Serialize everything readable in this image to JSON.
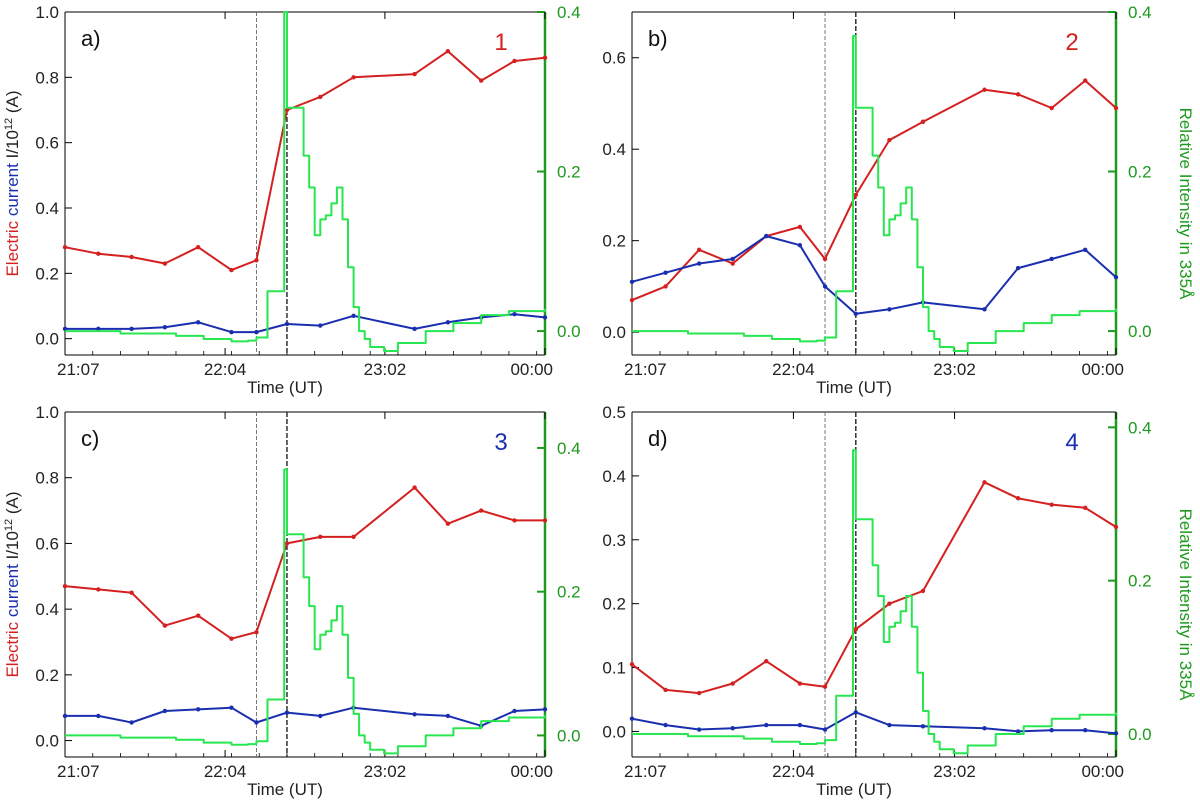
{
  "shared": {
    "xlabel": "Time (UT)",
    "xticks": [
      "21:07",
      "22:04",
      "23:02",
      "00:00"
    ],
    "ylabel_left_parts": [
      "Electric ",
      "current ",
      "I/10",
      "12",
      " (A)"
    ],
    "ylabel_right": "Relative Intensity in 335Å",
    "colors": {
      "red": "#d42020",
      "blue": "#1a2fb0",
      "green": "#28e650",
      "axis_green": "#1e9a1e",
      "dashed": "#555555"
    }
  },
  "chart_data": [
    {
      "type": "line",
      "panel_label": "a)",
      "number_label": "1",
      "number_color": "#d42020",
      "xlim": [
        0,
        173
      ],
      "ylim_left": [
        -0.05,
        1.0
      ],
      "ylim_right": [
        -0.03,
        0.4
      ],
      "yticks_left": [
        "0.0",
        "0.2",
        "0.4",
        "0.6",
        "0.8",
        "1.0"
      ],
      "yticks_right": [
        "0.0",
        "0.2",
        "0.4"
      ],
      "show_left_label": true,
      "show_right_label": false,
      "vlines_minutes": [
        69,
        80
      ],
      "series": [
        {
          "name": "red current",
          "color": "#d42020",
          "x": [
            0,
            12,
            24,
            36,
            48,
            60,
            69,
            80,
            92,
            104,
            126,
            138,
            150,
            162,
            173
          ],
          "y": [
            0.28,
            0.26,
            0.25,
            0.23,
            0.28,
            0.21,
            0.24,
            0.7,
            0.74,
            0.8,
            0.81,
            0.88,
            0.79,
            0.85,
            0.86
          ]
        },
        {
          "name": "blue current",
          "color": "#1a2fb0",
          "x": [
            0,
            12,
            24,
            36,
            48,
            60,
            69,
            80,
            92,
            104,
            126,
            138,
            150,
            162,
            173
          ],
          "y": [
            0.03,
            0.03,
            0.03,
            0.035,
            0.05,
            0.02,
            0.02,
            0.045,
            0.04,
            0.07,
            0.03,
            0.05,
            0.065,
            0.075,
            0.065
          ]
        },
        {
          "name": "335 intensity",
          "color": "#28e650",
          "x": [
            0,
            20,
            40,
            50,
            60,
            66,
            69,
            73,
            74,
            78,
            79,
            80,
            82,
            84,
            86,
            88,
            90,
            92,
            94,
            96,
            98,
            100,
            102,
            104,
            106,
            108,
            110,
            115,
            120,
            130,
            140,
            150,
            160,
            173
          ],
          "y": [
            0.0,
            -0.003,
            -0.006,
            -0.01,
            -0.013,
            -0.012,
            -0.008,
            0.05,
            0.05,
            0.05,
            0.4,
            0.28,
            0.28,
            0.28,
            0.22,
            0.18,
            0.12,
            0.14,
            0.145,
            0.16,
            0.18,
            0.14,
            0.08,
            0.03,
            0.0,
            -0.01,
            -0.02,
            -0.025,
            -0.015,
            0.0,
            0.01,
            0.02,
            0.025,
            0.028
          ]
        }
      ]
    },
    {
      "type": "line",
      "panel_label": "b)",
      "number_label": "2",
      "number_color": "#d42020",
      "xlim": [
        0,
        173
      ],
      "ylim_left": [
        -0.05,
        0.7
      ],
      "ylim_right": [
        -0.03,
        0.4
      ],
      "yticks_left": [
        "0.0",
        "0.2",
        "0.4",
        "0.6"
      ],
      "yticks_right": [
        "0.0",
        "0.2",
        "0.4"
      ],
      "show_left_label": false,
      "show_right_label": true,
      "vlines_minutes": [
        69,
        80
      ],
      "series": [
        {
          "name": "red current",
          "color": "#d42020",
          "x": [
            0,
            12,
            24,
            36,
            48,
            60,
            69,
            80,
            92,
            104,
            126,
            138,
            150,
            162,
            173
          ],
          "y": [
            0.07,
            0.1,
            0.18,
            0.15,
            0.21,
            0.23,
            0.16,
            0.3,
            0.42,
            0.46,
            0.53,
            0.52,
            0.49,
            0.55,
            0.49
          ]
        },
        {
          "name": "blue current",
          "color": "#1a2fb0",
          "x": [
            0,
            12,
            24,
            36,
            48,
            60,
            69,
            80,
            92,
            104,
            126,
            138,
            150,
            162,
            173
          ],
          "y": [
            0.11,
            0.13,
            0.15,
            0.16,
            0.21,
            0.19,
            0.1,
            0.04,
            0.05,
            0.065,
            0.05,
            0.14,
            0.16,
            0.18,
            0.12
          ]
        },
        {
          "name": "335 intensity",
          "color": "#28e650",
          "x": [
            0,
            20,
            40,
            50,
            60,
            66,
            69,
            73,
            74,
            78,
            79,
            80,
            82,
            84,
            86,
            88,
            90,
            92,
            94,
            96,
            98,
            100,
            102,
            104,
            106,
            108,
            110,
            115,
            120,
            130,
            140,
            150,
            160,
            173
          ],
          "y": [
            0.0,
            -0.003,
            -0.006,
            -0.01,
            -0.013,
            -0.012,
            -0.008,
            0.05,
            0.05,
            0.05,
            0.37,
            0.28,
            0.28,
            0.28,
            0.22,
            0.18,
            0.12,
            0.14,
            0.145,
            0.16,
            0.18,
            0.14,
            0.08,
            0.03,
            0.0,
            -0.01,
            -0.02,
            -0.025,
            -0.015,
            0.0,
            0.01,
            0.02,
            0.025,
            0.028
          ]
        }
      ]
    },
    {
      "type": "line",
      "panel_label": "c)",
      "number_label": "3",
      "number_color": "#1a2fb0",
      "xlim": [
        0,
        173
      ],
      "ylim_left": [
        -0.05,
        1.0
      ],
      "ylim_right": [
        -0.03,
        0.45
      ],
      "yticks_left": [
        "0.0",
        "0.2",
        "0.4",
        "0.6",
        "0.8",
        "1.0"
      ],
      "yticks_right": [
        "0.0",
        "0.2",
        "0.4"
      ],
      "show_left_label": true,
      "show_right_label": false,
      "vlines_minutes": [
        69,
        80
      ],
      "series": [
        {
          "name": "red current",
          "color": "#d42020",
          "x": [
            0,
            12,
            24,
            36,
            48,
            60,
            69,
            80,
            92,
            104,
            126,
            138,
            150,
            162,
            173
          ],
          "y": [
            0.47,
            0.46,
            0.45,
            0.35,
            0.38,
            0.31,
            0.33,
            0.6,
            0.62,
            0.62,
            0.77,
            0.66,
            0.7,
            0.67,
            0.67
          ]
        },
        {
          "name": "blue current",
          "color": "#1a2fb0",
          "x": [
            0,
            12,
            24,
            36,
            48,
            60,
            69,
            80,
            92,
            104,
            126,
            138,
            150,
            162,
            173
          ],
          "y": [
            0.075,
            0.075,
            0.055,
            0.09,
            0.095,
            0.1,
            0.055,
            0.085,
            0.075,
            0.1,
            0.08,
            0.075,
            0.045,
            0.09,
            0.095
          ]
        },
        {
          "name": "335 intensity",
          "color": "#28e650",
          "x": [
            0,
            20,
            40,
            50,
            60,
            66,
            69,
            73,
            74,
            78,
            79,
            80,
            82,
            84,
            86,
            88,
            90,
            92,
            94,
            96,
            98,
            100,
            102,
            104,
            106,
            108,
            110,
            115,
            120,
            130,
            140,
            150,
            160,
            173
          ],
          "y": [
            0.0,
            -0.003,
            -0.006,
            -0.01,
            -0.013,
            -0.012,
            -0.008,
            0.05,
            0.05,
            0.05,
            0.37,
            0.28,
            0.28,
            0.28,
            0.22,
            0.18,
            0.12,
            0.14,
            0.145,
            0.16,
            0.18,
            0.14,
            0.08,
            0.03,
            0.0,
            -0.01,
            -0.02,
            -0.025,
            -0.015,
            0.0,
            0.01,
            0.02,
            0.025,
            0.028
          ]
        }
      ]
    },
    {
      "type": "line",
      "panel_label": "d)",
      "number_label": "4",
      "number_color": "#1a2fb0",
      "xlim": [
        0,
        173
      ],
      "ylim_left": [
        -0.04,
        0.5
      ],
      "ylim_right": [
        -0.03,
        0.42
      ],
      "yticks_left": [
        "0.0",
        "0.1",
        "0.2",
        "0.3",
        "0.4",
        "0.5"
      ],
      "yticks_right": [
        "0.0",
        "0.2",
        "0.4"
      ],
      "show_left_label": false,
      "show_right_label": true,
      "vlines_minutes": [
        69,
        80
      ],
      "series": [
        {
          "name": "red current",
          "color": "#d42020",
          "x": [
            0,
            12,
            24,
            36,
            48,
            60,
            69,
            80,
            92,
            104,
            126,
            138,
            150,
            162,
            173
          ],
          "y": [
            0.105,
            0.065,
            0.06,
            0.075,
            0.11,
            0.075,
            0.07,
            0.16,
            0.2,
            0.22,
            0.39,
            0.365,
            0.355,
            0.35,
            0.32
          ]
        },
        {
          "name": "blue current",
          "color": "#1a2fb0",
          "x": [
            0,
            12,
            24,
            36,
            48,
            60,
            69,
            80,
            92,
            104,
            126,
            138,
            150,
            162,
            173
          ],
          "y": [
            0.02,
            0.01,
            0.003,
            0.005,
            0.01,
            0.01,
            0.003,
            0.03,
            0.01,
            0.008,
            0.005,
            0.0,
            0.002,
            0.002,
            -0.003
          ]
        },
        {
          "name": "335 intensity",
          "color": "#28e650",
          "x": [
            0,
            20,
            40,
            50,
            60,
            66,
            69,
            73,
            74,
            78,
            79,
            80,
            82,
            84,
            86,
            88,
            90,
            92,
            94,
            96,
            98,
            100,
            102,
            104,
            106,
            108,
            110,
            115,
            120,
            130,
            140,
            150,
            160,
            173
          ],
          "y": [
            0.0,
            -0.003,
            -0.006,
            -0.01,
            -0.013,
            -0.012,
            -0.008,
            0.05,
            0.05,
            0.05,
            0.37,
            0.28,
            0.28,
            0.28,
            0.22,
            0.18,
            0.12,
            0.14,
            0.145,
            0.16,
            0.18,
            0.14,
            0.08,
            0.03,
            0.0,
            -0.01,
            -0.02,
            -0.025,
            -0.015,
            0.0,
            0.01,
            0.02,
            0.025,
            0.028
          ]
        }
      ]
    }
  ]
}
